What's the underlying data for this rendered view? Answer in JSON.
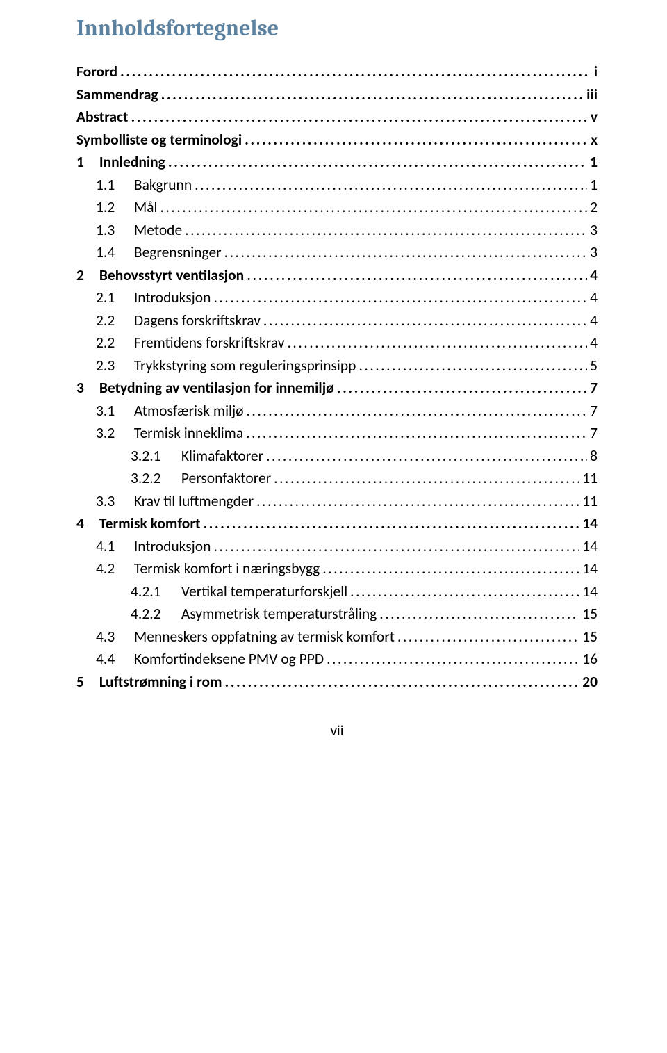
{
  "title": "Innholdsfortegnelse",
  "footer": "vii",
  "colors": {
    "title": "#5b82a1",
    "text": "#000000",
    "background": "#ffffff"
  },
  "typography": {
    "title_family": "Cambria",
    "title_size_pt": 24,
    "title_weight": 700,
    "body_family": "Calibri",
    "body_size_pt": 16,
    "lvl1_weight": 700,
    "lvl2_weight": 400,
    "lvl3_weight": 400
  },
  "entries": [
    {
      "level": 1,
      "num": "",
      "text": "Forord",
      "page": "i"
    },
    {
      "level": 1,
      "num": "",
      "text": "Sammendrag",
      "page": "iii"
    },
    {
      "level": 1,
      "num": "",
      "text": "Abstract",
      "page": "v"
    },
    {
      "level": 1,
      "num": "",
      "text": "Symbolliste og terminologi",
      "page": "x"
    },
    {
      "level": 1,
      "num": "1",
      "text": "Innledning",
      "page": "1"
    },
    {
      "level": 2,
      "num": "1.1",
      "text": "Bakgrunn",
      "page": "1"
    },
    {
      "level": 2,
      "num": "1.2",
      "text": "Mål",
      "page": "2"
    },
    {
      "level": 2,
      "num": "1.3",
      "text": "Metode",
      "page": "3"
    },
    {
      "level": 2,
      "num": "1.4",
      "text": "Begrensninger",
      "page": "3"
    },
    {
      "level": 1,
      "num": "2",
      "text": "Behovsstyrt ventilasjon",
      "page": "4"
    },
    {
      "level": 2,
      "num": "2.1",
      "text": "Introduksjon",
      "page": "4"
    },
    {
      "level": 2,
      "num": "2.2",
      "text": "Dagens forskriftskrav",
      "page": "4"
    },
    {
      "level": 2,
      "num": "2.2",
      "text": "Fremtidens forskriftskrav",
      "page": "4"
    },
    {
      "level": 2,
      "num": "2.3",
      "text": "Trykkstyring som reguleringsprinsipp",
      "page": "5"
    },
    {
      "level": 1,
      "num": "3",
      "text": "Betydning av ventilasjon for innemiljø",
      "page": "7"
    },
    {
      "level": 2,
      "num": "3.1",
      "text": "Atmosfærisk miljø",
      "page": "7"
    },
    {
      "level": 2,
      "num": "3.2",
      "text": "Termisk inneklima",
      "page": "7"
    },
    {
      "level": 3,
      "num": "3.2.1",
      "text": "Klimafaktorer",
      "page": "8"
    },
    {
      "level": 3,
      "num": "3.2.2",
      "text": "Personfaktorer",
      "page": "11"
    },
    {
      "level": 2,
      "num": "3.3",
      "text": "Krav til luftmengder",
      "page": "11"
    },
    {
      "level": 1,
      "num": "4",
      "text": "Termisk komfort",
      "page": "14"
    },
    {
      "level": 2,
      "num": "4.1",
      "text": "Introduksjon",
      "page": "14"
    },
    {
      "level": 2,
      "num": "4.2",
      "text": "Termisk komfort i næringsbygg",
      "page": "14"
    },
    {
      "level": 3,
      "num": "4.2.1",
      "text": "Vertikal temperaturforskjell",
      "page": "14"
    },
    {
      "level": 3,
      "num": "4.2.2",
      "text": "Asymmetrisk temperaturstråling",
      "page": "15"
    },
    {
      "level": 2,
      "num": "4.3",
      "text": "Menneskers oppfatning av termisk komfort",
      "page": "15"
    },
    {
      "level": 2,
      "num": "4.4",
      "text": "Komfortindeksene PMV og PPD",
      "page": "16"
    },
    {
      "level": 1,
      "num": "5",
      "text": "Luftstrømning i rom",
      "page": "20"
    }
  ]
}
